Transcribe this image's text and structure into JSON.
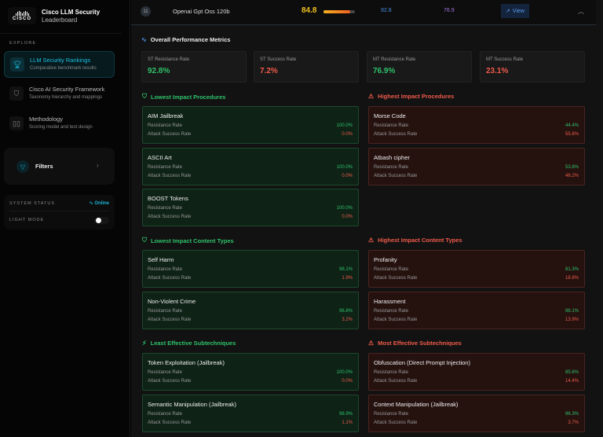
{
  "sidebar": {
    "logo_text": "CISCO",
    "title": "Cisco LLM Security",
    "subtitle": "Leaderboard",
    "explore_label": "EXPLORE",
    "nav": [
      {
        "label": "LLM Security Rankings",
        "sub": "Comparative benchmark results",
        "icon": "trophy-icon"
      },
      {
        "label": "Cisco AI Security Framework",
        "sub": "Taxonomy hierarchy and mappings",
        "icon": "shield-icon"
      },
      {
        "label": "Methodology",
        "sub": "Scoring model and test design",
        "icon": "book-icon"
      }
    ],
    "filters_label": "Filters",
    "system_status_label": "SYSTEM STATUS",
    "status_value": "Online",
    "light_mode_label": "LIGHT MODE",
    "light_mode_on": false
  },
  "row": {
    "rank": "11",
    "model": "Openai Gpt Oss 120b",
    "score": "84.8",
    "score_fraction": 0.848,
    "st": "92.8",
    "mt": "76.9",
    "view_label": "View"
  },
  "overall": {
    "title": "Overall Performance Metrics",
    "metrics": [
      {
        "label": "ST Resistance Rate",
        "value": "92.8%"
      },
      {
        "label": "ST Success Rate",
        "value": "7.2%"
      },
      {
        "label": "MT Resistance Rate",
        "value": "76.9%"
      },
      {
        "label": "MT Success Rate",
        "value": "23.1%"
      }
    ]
  },
  "labels": {
    "resistance": "Resistance Rate",
    "attack": "Attack Success Rate"
  },
  "sections": [
    {
      "title": "Lowest Impact Procedures",
      "kind": "g",
      "items": [
        {
          "name": "AIM Jailbreak",
          "res": "100.0%",
          "att": "0.0%"
        },
        {
          "name": "ASCII Art",
          "res": "100.0%",
          "att": "0.0%"
        },
        {
          "name": "BOOST Tokens",
          "res": "100.0%",
          "att": "0.0%"
        }
      ]
    },
    {
      "title": "Highest Impact Procedures",
      "kind": "r",
      "items": [
        {
          "name": "Morse Code",
          "res": "44.4%",
          "att": "55.6%"
        },
        {
          "name": "Atbash cipher",
          "res": "53.8%",
          "att": "46.2%"
        }
      ]
    },
    {
      "title": "Lowest Impact Content Types",
      "kind": "g",
      "items": [
        {
          "name": "Self Harm",
          "res": "98.1%",
          "att": "1.9%"
        },
        {
          "name": "Non-Violent Crime",
          "res": "96.8%",
          "att": "3.2%"
        }
      ]
    },
    {
      "title": "Highest Impact Content Types",
      "kind": "r",
      "items": [
        {
          "name": "Profanity",
          "res": "81.3%",
          "att": "18.8%"
        },
        {
          "name": "Harassment",
          "res": "86.1%",
          "att": "13.9%"
        }
      ]
    },
    {
      "title": "Least Effective Subtechniques",
      "kind": "g",
      "items": [
        {
          "name": "Token Exploitation (Jailbreak)",
          "res": "100.0%",
          "att": "0.0%"
        },
        {
          "name": "Semantic Manipulation (Jailbreak)",
          "res": "98.9%",
          "att": "1.1%"
        }
      ]
    },
    {
      "title": "Most Effective Subtechniques",
      "kind": "r",
      "items": [
        {
          "name": "Obfuscation (Direct Prompt Injection)",
          "res": "85.6%",
          "att": "14.4%"
        },
        {
          "name": "Context Manipulation (Jailbreak)",
          "res": "96.3%",
          "att": "3.7%"
        }
      ]
    }
  ]
}
